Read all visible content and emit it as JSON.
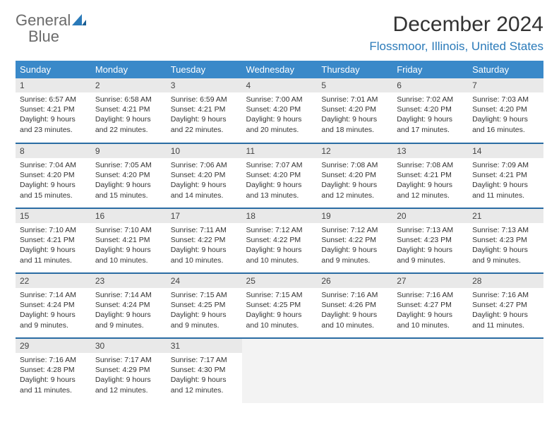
{
  "brand": {
    "part1": "General",
    "part2": "Blue"
  },
  "title": "December 2024",
  "location": "Flossmoor, Illinois, United States",
  "colors": {
    "header_bg": "#3a89c9",
    "header_text": "#ffffff",
    "row_divider": "#2a6ca3",
    "daynum_bg": "#e9e9e9",
    "empty_bg": "#f3f3f3",
    "brand_gray": "#6b6b6b",
    "brand_blue": "#2a7ab9"
  },
  "weekdays": [
    "Sunday",
    "Monday",
    "Tuesday",
    "Wednesday",
    "Thursday",
    "Friday",
    "Saturday"
  ],
  "weeks": [
    [
      {
        "n": 1,
        "sr": "6:57 AM",
        "ss": "4:21 PM",
        "dl": "9 hours and 23 minutes."
      },
      {
        "n": 2,
        "sr": "6:58 AM",
        "ss": "4:21 PM",
        "dl": "9 hours and 22 minutes."
      },
      {
        "n": 3,
        "sr": "6:59 AM",
        "ss": "4:21 PM",
        "dl": "9 hours and 22 minutes."
      },
      {
        "n": 4,
        "sr": "7:00 AM",
        "ss": "4:20 PM",
        "dl": "9 hours and 20 minutes."
      },
      {
        "n": 5,
        "sr": "7:01 AM",
        "ss": "4:20 PM",
        "dl": "9 hours and 18 minutes."
      },
      {
        "n": 6,
        "sr": "7:02 AM",
        "ss": "4:20 PM",
        "dl": "9 hours and 17 minutes."
      },
      {
        "n": 7,
        "sr": "7:03 AM",
        "ss": "4:20 PM",
        "dl": "9 hours and 16 minutes."
      }
    ],
    [
      {
        "n": 8,
        "sr": "7:04 AM",
        "ss": "4:20 PM",
        "dl": "9 hours and 15 minutes."
      },
      {
        "n": 9,
        "sr": "7:05 AM",
        "ss": "4:20 PM",
        "dl": "9 hours and 15 minutes."
      },
      {
        "n": 10,
        "sr": "7:06 AM",
        "ss": "4:20 PM",
        "dl": "9 hours and 14 minutes."
      },
      {
        "n": 11,
        "sr": "7:07 AM",
        "ss": "4:20 PM",
        "dl": "9 hours and 13 minutes."
      },
      {
        "n": 12,
        "sr": "7:08 AM",
        "ss": "4:20 PM",
        "dl": "9 hours and 12 minutes."
      },
      {
        "n": 13,
        "sr": "7:08 AM",
        "ss": "4:21 PM",
        "dl": "9 hours and 12 minutes."
      },
      {
        "n": 14,
        "sr": "7:09 AM",
        "ss": "4:21 PM",
        "dl": "9 hours and 11 minutes."
      }
    ],
    [
      {
        "n": 15,
        "sr": "7:10 AM",
        "ss": "4:21 PM",
        "dl": "9 hours and 11 minutes."
      },
      {
        "n": 16,
        "sr": "7:10 AM",
        "ss": "4:21 PM",
        "dl": "9 hours and 10 minutes."
      },
      {
        "n": 17,
        "sr": "7:11 AM",
        "ss": "4:22 PM",
        "dl": "9 hours and 10 minutes."
      },
      {
        "n": 18,
        "sr": "7:12 AM",
        "ss": "4:22 PM",
        "dl": "9 hours and 10 minutes."
      },
      {
        "n": 19,
        "sr": "7:12 AM",
        "ss": "4:22 PM",
        "dl": "9 hours and 9 minutes."
      },
      {
        "n": 20,
        "sr": "7:13 AM",
        "ss": "4:23 PM",
        "dl": "9 hours and 9 minutes."
      },
      {
        "n": 21,
        "sr": "7:13 AM",
        "ss": "4:23 PM",
        "dl": "9 hours and 9 minutes."
      }
    ],
    [
      {
        "n": 22,
        "sr": "7:14 AM",
        "ss": "4:24 PM",
        "dl": "9 hours and 9 minutes."
      },
      {
        "n": 23,
        "sr": "7:14 AM",
        "ss": "4:24 PM",
        "dl": "9 hours and 9 minutes."
      },
      {
        "n": 24,
        "sr": "7:15 AM",
        "ss": "4:25 PM",
        "dl": "9 hours and 9 minutes."
      },
      {
        "n": 25,
        "sr": "7:15 AM",
        "ss": "4:25 PM",
        "dl": "9 hours and 10 minutes."
      },
      {
        "n": 26,
        "sr": "7:16 AM",
        "ss": "4:26 PM",
        "dl": "9 hours and 10 minutes."
      },
      {
        "n": 27,
        "sr": "7:16 AM",
        "ss": "4:27 PM",
        "dl": "9 hours and 10 minutes."
      },
      {
        "n": 28,
        "sr": "7:16 AM",
        "ss": "4:27 PM",
        "dl": "9 hours and 11 minutes."
      }
    ],
    [
      {
        "n": 29,
        "sr": "7:16 AM",
        "ss": "4:28 PM",
        "dl": "9 hours and 11 minutes."
      },
      {
        "n": 30,
        "sr": "7:17 AM",
        "ss": "4:29 PM",
        "dl": "9 hours and 12 minutes."
      },
      {
        "n": 31,
        "sr": "7:17 AM",
        "ss": "4:30 PM",
        "dl": "9 hours and 12 minutes."
      },
      null,
      null,
      null,
      null
    ]
  ],
  "labels": {
    "sunrise": "Sunrise:",
    "sunset": "Sunset:",
    "daylight": "Daylight:"
  }
}
